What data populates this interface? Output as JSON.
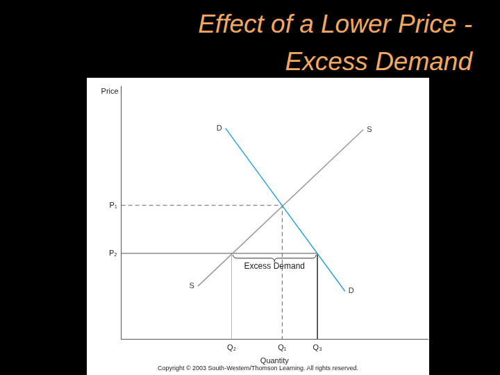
{
  "copyright": "Copyright © 2003 South-Western/Thomson Learning. All rights reserved.",
  "chart_data": {
    "type": "line",
    "title": "Effect of a Lower Price - Excess Demand",
    "x_label": "Quantity",
    "y_label": "Price",
    "xlim": [
      0,
      10
    ],
    "ylim": [
      0,
      10
    ],
    "xticks": [
      {
        "value": 3.6,
        "label": "Q₂"
      },
      {
        "value": 5.25,
        "label": "Q₁"
      },
      {
        "value": 6.4,
        "label": "Q₃"
      }
    ],
    "yticks": [
      {
        "value": 3.4,
        "label": "P₂"
      },
      {
        "value": 5.3,
        "label": "P₁"
      }
    ],
    "grid": false,
    "series": [
      {
        "name": "D",
        "color": "#2ba4d9",
        "x": [
          3.4,
          7.3
        ],
        "values": [
          8.35,
          1.9
        ]
      },
      {
        "name": "S",
        "color": "#9a9a9a",
        "x": [
          2.5,
          7.9
        ],
        "values": [
          2.1,
          8.3
        ]
      }
    ],
    "guide_lines": [
      {
        "x": [
          0,
          5.25,
          5.25
        ],
        "values": [
          5.3,
          5.3,
          0
        ],
        "line_style": "dashed",
        "color": "#666666"
      },
      {
        "x": [
          0,
          6.4
        ],
        "values": [
          3.4,
          3.4
        ],
        "line_style": "solid",
        "color": "#555555"
      },
      {
        "x": [
          3.6,
          3.6
        ],
        "values": [
          3.4,
          0
        ],
        "line_style": "solid",
        "color": "#bbbbbb"
      },
      {
        "x": [
          6.4,
          6.4
        ],
        "values": [
          3.4,
          0
        ],
        "line_style": "solid",
        "color": "#444444"
      }
    ],
    "annotations": [
      {
        "text": "Excess Demand",
        "y": 3.4,
        "x_from": 3.6,
        "x_to": 6.4
      }
    ]
  }
}
